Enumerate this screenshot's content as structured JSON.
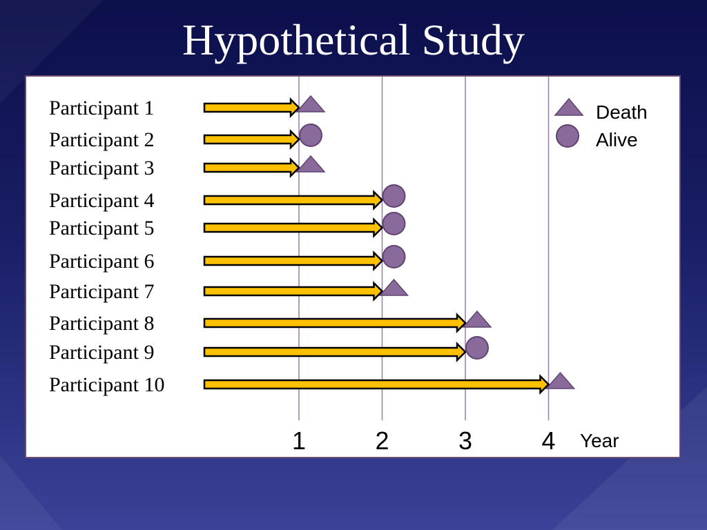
{
  "slide": {
    "title": "Hypothetical Study"
  },
  "colors": {
    "arrow_fill": "#FFC000",
    "arrow_stroke": "#000000",
    "marker_fill": "#8A6A9A",
    "marker_stroke": "#5F4370",
    "gridline": "#9A7AAA"
  },
  "chart_data": {
    "type": "timeline",
    "xlabel": "Year",
    "xticks": [
      "1",
      "2",
      "3",
      "4"
    ],
    "xlim": [
      0,
      4
    ],
    "grid": true,
    "legend": {
      "placement": "top-right",
      "items": [
        {
          "label": "Death",
          "marker": "triangle"
        },
        {
          "label": "Alive",
          "marker": "circle"
        }
      ]
    },
    "participants": [
      {
        "label": "Participant 1",
        "end_year": 1,
        "outcome": "Death"
      },
      {
        "label": "Participant 2",
        "end_year": 1,
        "outcome": "Alive"
      },
      {
        "label": "Participant 3",
        "end_year": 1,
        "outcome": "Death"
      },
      {
        "label": "Participant 4",
        "end_year": 2,
        "outcome": "Alive"
      },
      {
        "label": "Participant 5",
        "end_year": 2,
        "outcome": "Alive"
      },
      {
        "label": "Participant 6",
        "end_year": 2,
        "outcome": "Alive"
      },
      {
        "label": "Participant 7",
        "end_year": 2,
        "outcome": "Death"
      },
      {
        "label": "Participant 8",
        "end_year": 3,
        "outcome": "Death"
      },
      {
        "label": "Participant 9",
        "end_year": 3,
        "outcome": "Alive"
      },
      {
        "label": "Participant 10",
        "end_year": 4,
        "outcome": "Death"
      }
    ]
  }
}
